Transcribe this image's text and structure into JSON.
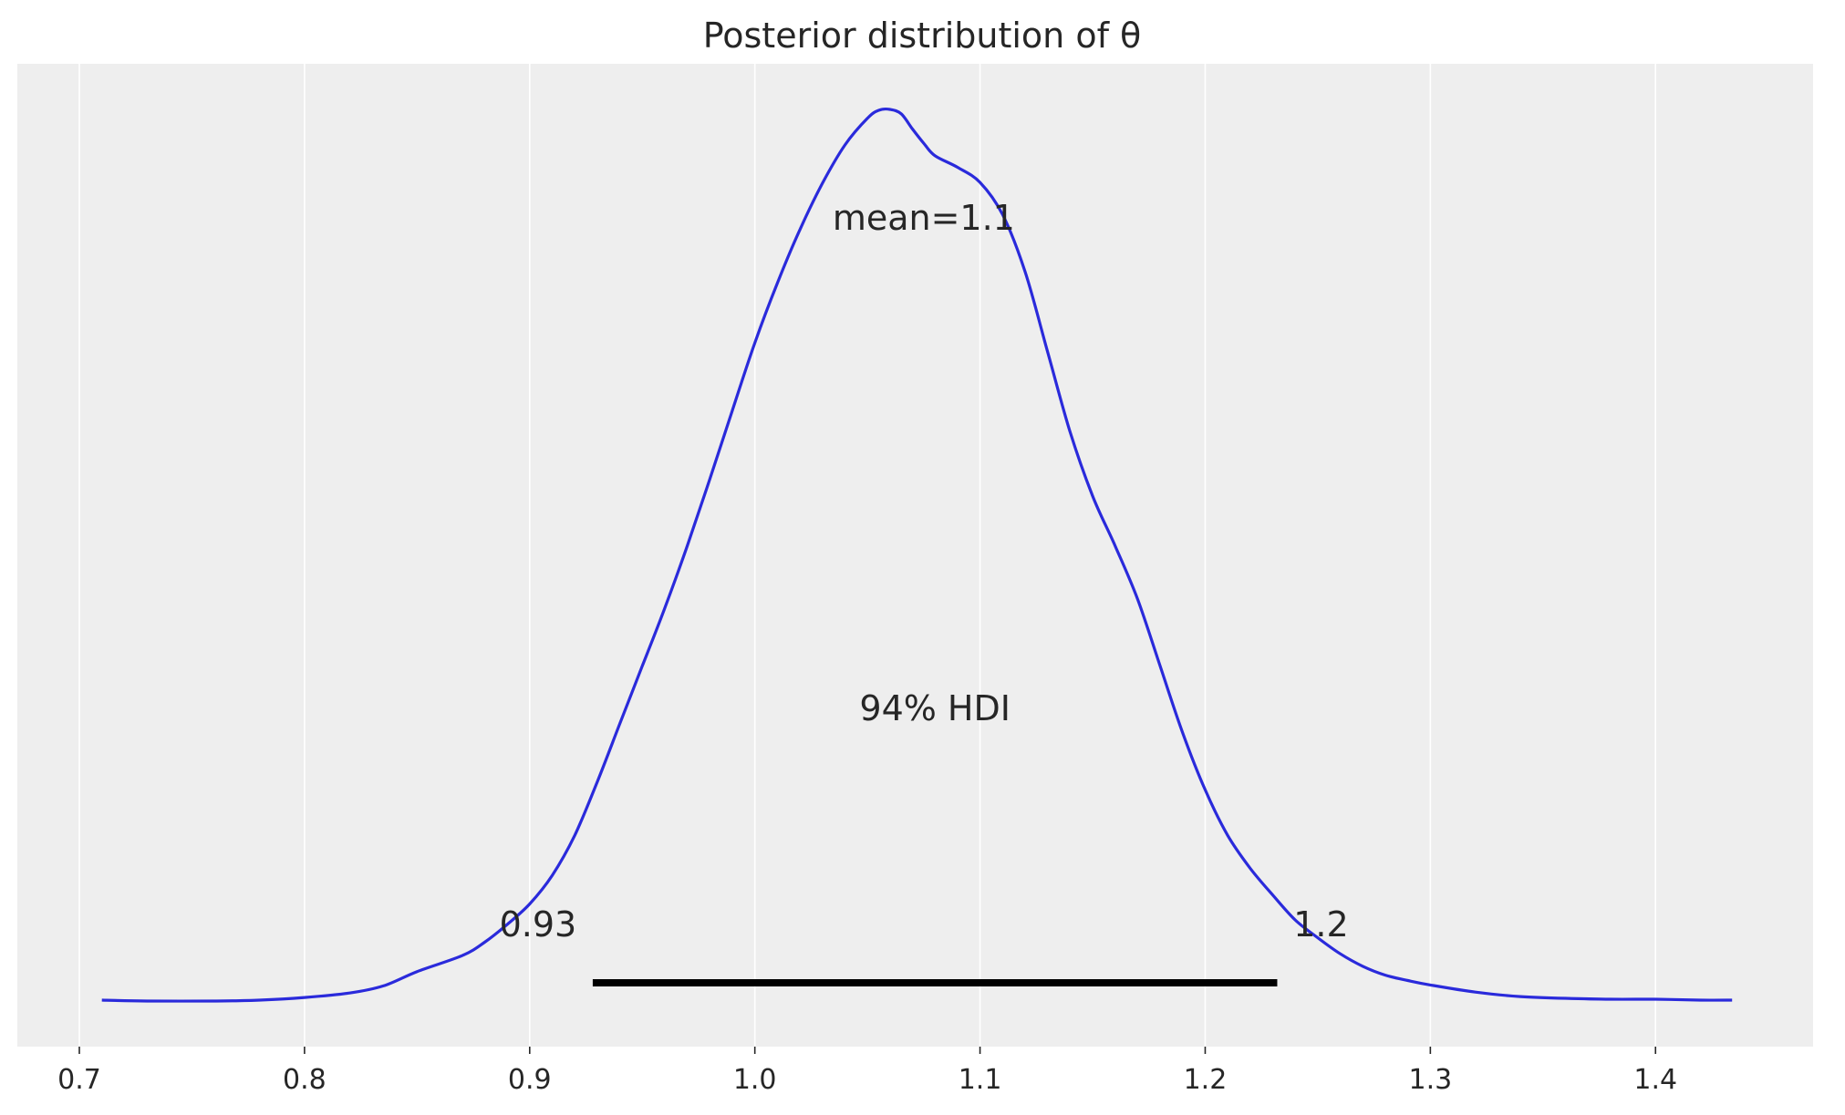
{
  "chart_data": {
    "type": "line",
    "title": "Posterior distribution of θ",
    "xlabel": "",
    "ylabel": "",
    "xlim": [
      0.7,
      1.44
    ],
    "ylim": [
      0,
      1.04
    ],
    "xticks": [
      "0.7",
      "0.8",
      "0.9",
      "1.0",
      "1.1",
      "1.2",
      "1.3",
      "1.4"
    ],
    "grid": "vertical",
    "background_color": "#eeeeee",
    "series": [
      {
        "color": "#2a2adb",
        "x": [
          0.71,
          0.73,
          0.76,
          0.78,
          0.8,
          0.82,
          0.835,
          0.85,
          0.87,
          0.88,
          0.89,
          0.9,
          0.91,
          0.92,
          0.93,
          0.94,
          0.95,
          0.96,
          0.97,
          0.98,
          0.99,
          1.0,
          1.01,
          1.02,
          1.03,
          1.04,
          1.05,
          1.055,
          1.06,
          1.065,
          1.07,
          1.075,
          1.08,
          1.09,
          1.1,
          1.11,
          1.12,
          1.13,
          1.14,
          1.15,
          1.16,
          1.17,
          1.18,
          1.19,
          1.2,
          1.21,
          1.22,
          1.23,
          1.24,
          1.25,
          1.26,
          1.27,
          1.28,
          1.29,
          1.3,
          1.32,
          1.34,
          1.36,
          1.38,
          1.4,
          1.42,
          1.434
        ],
        "y": [
          0.0,
          -0.001,
          -0.001,
          0.0,
          0.003,
          0.008,
          0.016,
          0.032,
          0.05,
          0.065,
          0.085,
          0.108,
          0.14,
          0.185,
          0.245,
          0.31,
          0.375,
          0.44,
          0.51,
          0.585,
          0.662,
          0.738,
          0.805,
          0.865,
          0.917,
          0.96,
          0.99,
          0.999,
          1.0,
          0.995,
          0.978,
          0.962,
          0.948,
          0.935,
          0.918,
          0.882,
          0.818,
          0.728,
          0.638,
          0.566,
          0.51,
          0.45,
          0.375,
          0.3,
          0.236,
          0.185,
          0.148,
          0.118,
          0.09,
          0.07,
          0.052,
          0.038,
          0.028,
          0.022,
          0.017,
          0.009,
          0.004,
          0.002,
          0.001,
          0.001,
          0.0,
          0.0
        ]
      }
    ],
    "mean_label": "mean=1.1",
    "mean_label_x": 1.075,
    "mean_label_y": 0.865,
    "hdi": {
      "label": "94% HDI",
      "low": 0.928,
      "high": 1.232,
      "low_label": "0.93",
      "high_label": "1.2",
      "color": "#000000"
    }
  }
}
